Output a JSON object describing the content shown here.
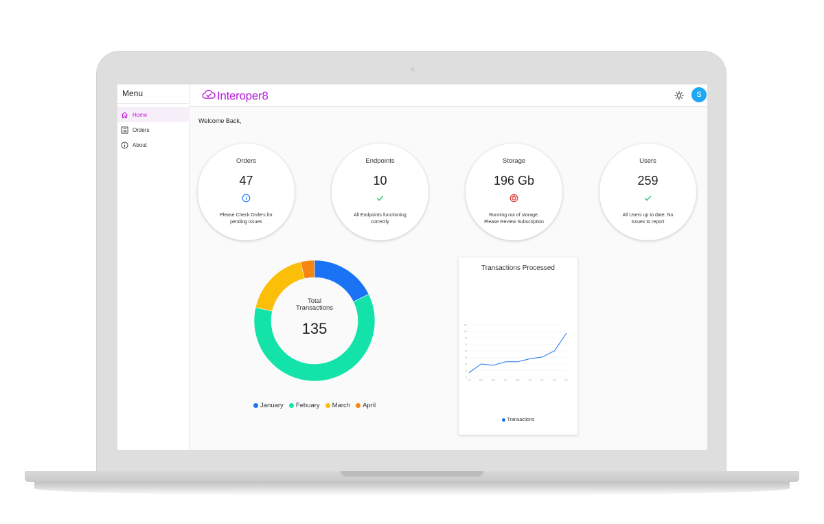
{
  "sidebar": {
    "title": "Menu",
    "items": [
      {
        "label": "Home",
        "icon": "home-icon"
      },
      {
        "label": "Orders",
        "icon": "list-icon"
      },
      {
        "label": "About",
        "icon": "info-icon"
      }
    ]
  },
  "header": {
    "brand": "Interoper8",
    "avatar_initial": "S",
    "theme_icon": "sun-icon"
  },
  "welcome": "Welcome Back,",
  "stats": [
    {
      "title": "Orders",
      "value": "47",
      "icon": "info-icon",
      "desc": "Please Check Orders for pending issues"
    },
    {
      "title": "Endpoints",
      "value": "10",
      "icon": "check-icon",
      "desc": "All Endpoints functioning correctly"
    },
    {
      "title": "Storage",
      "value": "196 Gb",
      "icon": "alert-icon",
      "desc": "Running out of storage. Please Review Subscription"
    },
    {
      "title": "Users",
      "value": "259",
      "icon": "check-icon",
      "desc": "All Users up to date. No issues to report"
    }
  ],
  "colors": {
    "brand": "#b61fd8",
    "january": "#1a73f5",
    "febuary": "#14e3a9",
    "march": "#fbbe09",
    "april": "#f78513",
    "info": "#1a73f5",
    "success": "#18c46a",
    "danger": "#e53935"
  },
  "chart_data": [
    {
      "type": "pie",
      "title": "Total Transactions",
      "total": "135",
      "categories": [
        "January",
        "Febuary",
        "March",
        "April"
      ],
      "values": [
        24,
        82,
        24,
        5
      ]
    },
    {
      "type": "line",
      "title": "Transactions Processed",
      "categories": [
        "Jan",
        "Feb",
        "Mar",
        "Apr",
        "May",
        "Jun",
        "Jul",
        "Aug",
        "Sep"
      ],
      "series": [
        {
          "name": "Transactions",
          "values": [
            10,
            30,
            27,
            35,
            35,
            42,
            46,
            60,
            101
          ]
        }
      ],
      "ylim": [
        0,
        120
      ],
      "grid": true,
      "legend": "bottom"
    }
  ]
}
